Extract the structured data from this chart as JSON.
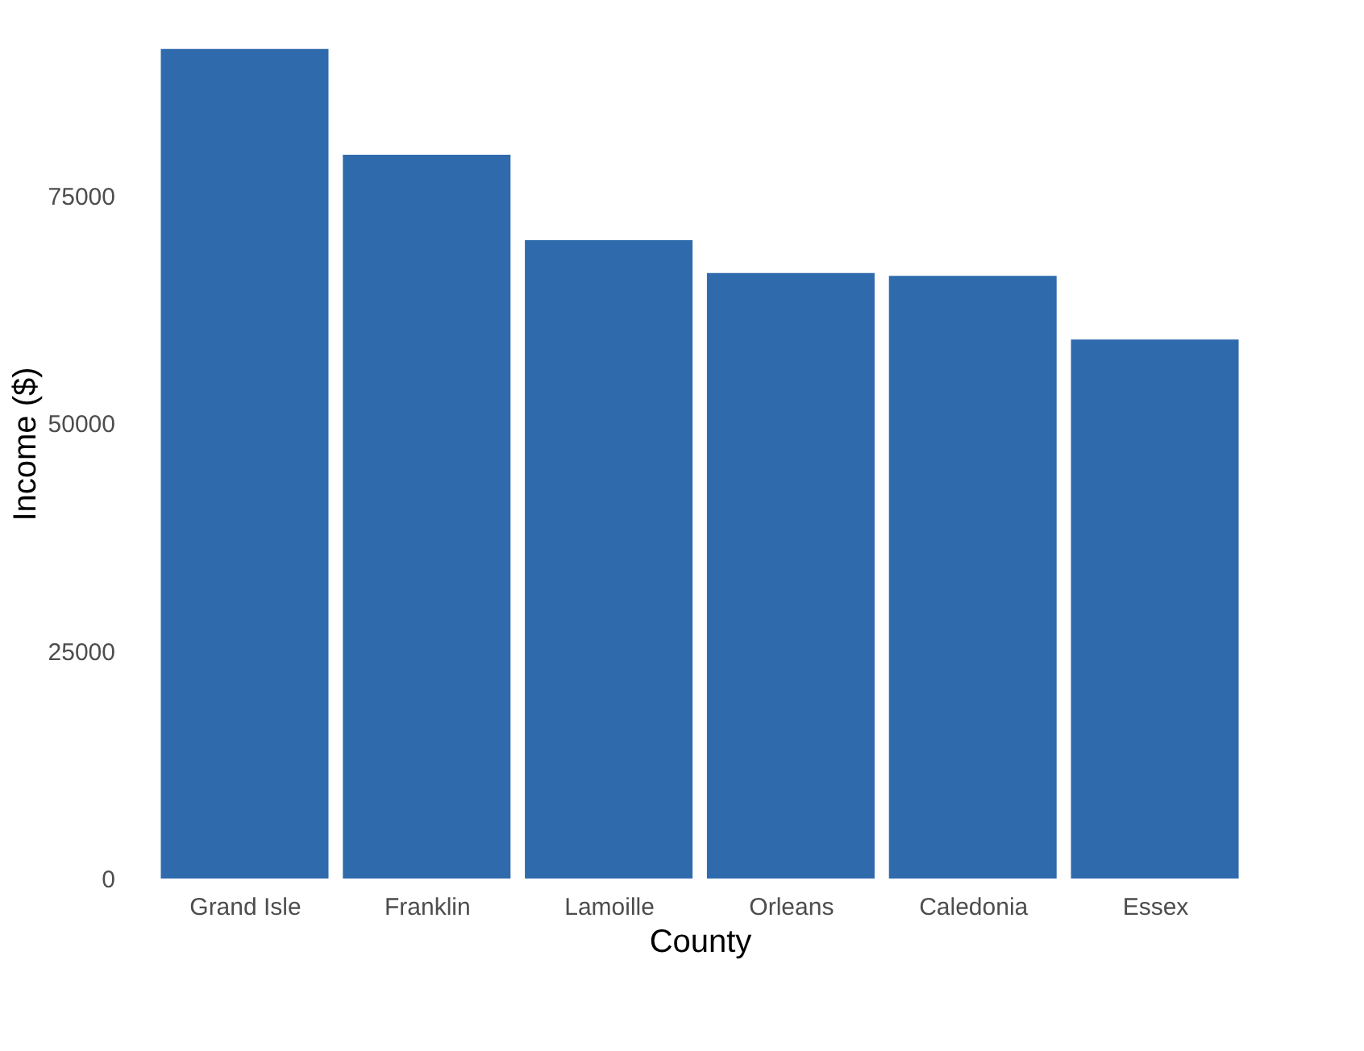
{
  "chart_data": {
    "type": "bar",
    "xlabel": "County",
    "ylabel": "Income ($)",
    "categories": [
      "Grand Isle",
      "Franklin",
      "Lamoille",
      "Orleans",
      "Caledonia",
      "Essex"
    ],
    "values": [
      91100,
      79500,
      70100,
      66500,
      66200,
      59200
    ],
    "color": "#2f6aac",
    "ylim": [
      0,
      95600
    ],
    "yticks": [
      0,
      25000,
      50000,
      75000
    ]
  }
}
